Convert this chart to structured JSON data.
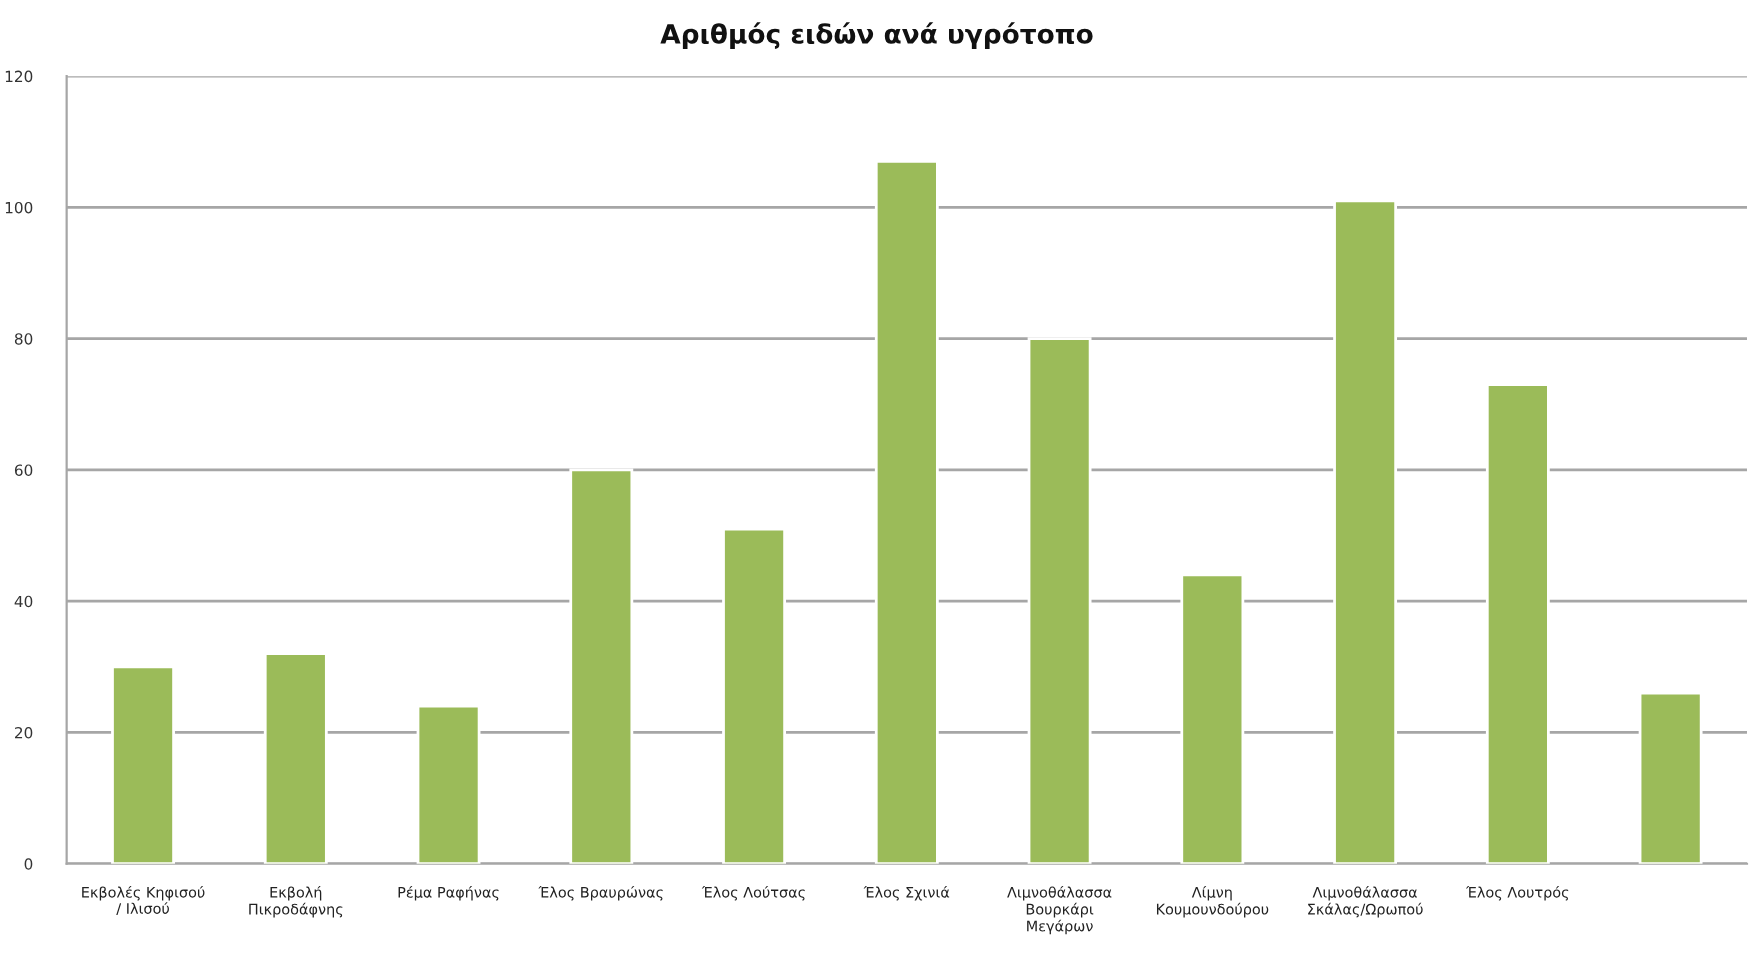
{
  "chart_data": {
    "type": "bar",
    "title": "Αριθμός ειδών ανά υγρότοπο",
    "categories": [
      "Εκβολές Κηφισού\n/ Ιλισού",
      "Εκβολή\nΠικροδάφνης",
      "Ρέμα Ραφήνας",
      "Έλος Βραυρώνας",
      "Έλος Λούτσας",
      "Έλος Σχινιά",
      "Λιμνοθάλασσα\nΒουρκάρι\nΜεγάρων",
      "Λίμνη\nΚουμουνδούρου",
      "Λιμνοθάλασσα\nΣκάλας/Ωρωπού",
      "Έλος Λουτρός",
      null
    ],
    "values": [
      30,
      32,
      24,
      60,
      51,
      107,
      80,
      44,
      101,
      73,
      26
    ],
    "color": "#9bbb59",
    "ylim": [
      0,
      120
    ],
    "yticks": [
      0,
      20,
      40,
      60,
      80,
      100,
      120
    ],
    "grid": "y"
  }
}
